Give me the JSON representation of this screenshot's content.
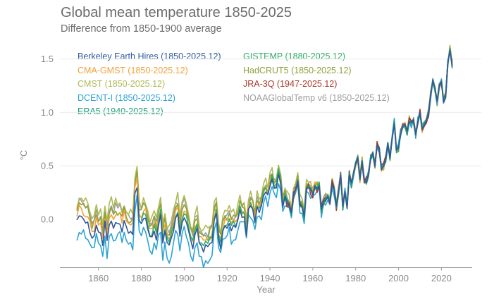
{
  "header": {
    "title": "Global mean temperature 1850-2025",
    "subtitle": "Difference from 1850-1900 average"
  },
  "colors": {
    "background": "#ffffff",
    "title_text": "#6c6c6c",
    "axis_text": "#8a8a8a",
    "axis_line": "#9a9a9a",
    "grid_line": "#ececec"
  },
  "chart_data": {
    "type": "line",
    "title": "Global mean temperature 1850-2025",
    "subtitle": "Difference from 1850-1900 average",
    "xlabel": "Year",
    "ylabel": "°C",
    "xlim": [
      1842,
      2035
    ],
    "ylim": [
      -0.45,
      1.65
    ],
    "xticks": [
      1860,
      1880,
      1900,
      1920,
      1940,
      1960,
      1980,
      2000,
      2020
    ],
    "yticks": [
      0.0,
      0.5,
      1.0,
      1.5
    ],
    "grid_y": [
      0.5,
      1.0,
      1.5
    ],
    "legend_position": "top",
    "years_range": [
      1850,
      2025
    ],
    "years_step": 1,
    "consensus_anomaly": [
      -0.02,
      0.04,
      0.03,
      0.0,
      -0.02,
      -0.03,
      -0.12,
      -0.18,
      -0.15,
      -0.05,
      -0.13,
      -0.12,
      -0.26,
      -0.03,
      -0.22,
      -0.05,
      -0.01,
      -0.07,
      -0.02,
      -0.05,
      -0.03,
      -0.1,
      -0.02,
      -0.08,
      -0.13,
      -0.12,
      -0.14,
      0.24,
      0.31,
      -0.03,
      -0.04,
      0.01,
      0.0,
      -0.09,
      -0.18,
      -0.17,
      -0.12,
      -0.19,
      -0.06,
      0.03,
      -0.21,
      -0.12,
      -0.23,
      -0.24,
      -0.19,
      -0.13,
      0.0,
      0.03,
      -0.16,
      -0.04,
      0.03,
      -0.02,
      -0.12,
      -0.21,
      -0.26,
      -0.14,
      -0.08,
      -0.24,
      -0.25,
      -0.29,
      -0.25,
      -0.27,
      -0.22,
      -0.2,
      -0.01,
      0.04,
      -0.18,
      -0.26,
      -0.13,
      -0.08,
      -0.07,
      -0.02,
      -0.09,
      -0.07,
      -0.09,
      -0.02,
      0.09,
      0.02,
      0.03,
      -0.14,
      0.09,
      0.12,
      0.09,
      -0.03,
      0.12,
      0.06,
      0.11,
      0.22,
      0.25,
      0.22,
      0.32,
      0.37,
      0.28,
      0.29,
      0.43,
      0.33,
      0.13,
      0.21,
      0.15,
      0.12,
      0.05,
      0.24,
      0.29,
      0.34,
      0.13,
      0.1,
      0.02,
      0.28,
      0.31,
      0.27,
      0.23,
      0.3,
      0.28,
      0.31,
      0.08,
      0.15,
      0.19,
      0.22,
      0.17,
      0.33,
      0.27,
      0.12,
      0.26,
      0.41,
      0.11,
      0.26,
      0.11,
      0.43,
      0.32,
      0.42,
      0.52,
      0.57,
      0.38,
      0.56,
      0.37,
      0.36,
      0.43,
      0.58,
      0.61,
      0.5,
      0.7,
      0.66,
      0.48,
      0.5,
      0.56,
      0.71,
      0.57,
      0.74,
      0.91,
      0.65,
      0.66,
      0.8,
      0.88,
      0.89,
      0.81,
      0.93,
      0.9,
      0.92,
      0.79,
      0.92,
      0.99,
      0.84,
      0.9,
      0.93,
      1.0,
      1.17,
      1.29,
      1.21,
      1.09,
      1.24,
      1.28,
      1.11,
      1.16,
      1.46,
      1.6,
      1.45
    ],
    "series": [
      {
        "name": "berkeley-earth-hires",
        "label": "Berkeley Earth Hires (1850-2025.12)",
        "color": "#30589c",
        "start_year": 1850,
        "end_year": 2025,
        "early_offset": 0.0,
        "jitter": 0.02,
        "column": 0,
        "z": 9
      },
      {
        "name": "cma-gmst",
        "label": "CMA-GMST (1850-2025.12)",
        "color": "#f0a23b",
        "start_year": 1850,
        "end_year": 2025,
        "early_offset": 0.07,
        "jitter": 0.035,
        "column": 0,
        "z": 4
      },
      {
        "name": "cmst",
        "label": "CMST (1850-2025.12)",
        "color": "#afba55",
        "start_year": 1850,
        "end_year": 2025,
        "early_offset": 0.18,
        "jitter": 0.045,
        "column": 0,
        "z": 2
      },
      {
        "name": "dcent-i",
        "label": "DCENT-I (1850-2025.12)",
        "color": "#2da3d5",
        "start_year": 1850,
        "end_year": 2025,
        "early_offset": -0.13,
        "jitter": 0.05,
        "column": 0,
        "z": 5
      },
      {
        "name": "era5",
        "label": "ERA5 (1940-2025.12)",
        "color": "#1d9c77",
        "start_year": 1940,
        "end_year": 2025,
        "early_offset": 0.0,
        "jitter": 0.025,
        "column": 0,
        "z": 8
      },
      {
        "name": "gistemp",
        "label": "GISTEMP (1880-2025.12)",
        "color": "#2eae66",
        "start_year": 1880,
        "end_year": 2025,
        "early_offset": 0.04,
        "jitter": 0.03,
        "column": 1,
        "z": 6
      },
      {
        "name": "hadcrut5",
        "label": "HadCRUT5 (1850-2025.12)",
        "color": "#90a13c",
        "start_year": 1850,
        "end_year": 2025,
        "early_offset": 0.12,
        "jitter": 0.035,
        "column": 1,
        "z": 3
      },
      {
        "name": "jra-3q",
        "label": "JRA-3Q (1947-2025.12)",
        "color": "#a9392b",
        "start_year": 1947,
        "end_year": 2025,
        "early_offset": 0.0,
        "jitter": 0.04,
        "column": 1,
        "z": 7
      },
      {
        "name": "noaaglobaltemp-v6",
        "label": "NOAAGlobalTemp v6 (1850-2025.12)",
        "color": "#9e9e9e",
        "start_year": 1850,
        "end_year": 2025,
        "early_offset": 0.14,
        "jitter": 0.035,
        "column": 1,
        "z": 1
      }
    ]
  }
}
